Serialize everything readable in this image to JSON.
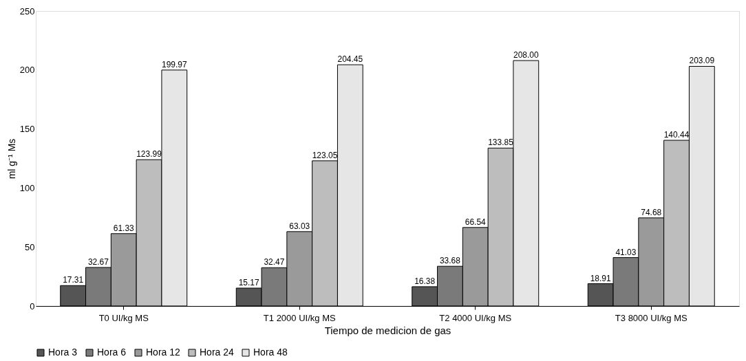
{
  "chart_data": {
    "type": "bar",
    "xlabel": "Tiempo  de medicion de gas",
    "ylabel": "ml g⁻¹ Ms",
    "categories": [
      "T0  UI/kg MS",
      "T1 2000 UI/kg MS",
      "T2 4000 UI/kg MS",
      "T3 8000 UI/kg MS"
    ],
    "series": [
      {
        "name": "Hora 3",
        "color": "#555555",
        "values": [
          17.31,
          15.17,
          16.38,
          18.91
        ],
        "value_labels": [
          "17.31",
          "15.17",
          "16.38",
          "18.91"
        ]
      },
      {
        "name": "Hora 6",
        "color": "#7a7a7a",
        "values": [
          32.67,
          32.47,
          33.68,
          41.03
        ],
        "value_labels": [
          "32.67",
          "32.47",
          "33.68",
          "41.03"
        ]
      },
      {
        "name": "Hora 12",
        "color": "#9a9a9a",
        "values": [
          61.33,
          63.03,
          66.54,
          74.68
        ],
        "value_labels": [
          "61.33",
          "63.03",
          "66.54",
          "74.68"
        ]
      },
      {
        "name": "Hora 24",
        "color": "#bdbdbd",
        "values": [
          123.99,
          123.05,
          133.85,
          140.44
        ],
        "value_labels": [
          "123.99",
          "123.05",
          "133.85",
          "140.44"
        ]
      },
      {
        "name": "Hora 48",
        "color": "#e6e6e6",
        "values": [
          199.97,
          204.45,
          208.0,
          203.09
        ],
        "value_labels": [
          "199.97",
          "204.45",
          "208.00",
          "203.09"
        ]
      }
    ],
    "ylim": [
      0,
      250
    ],
    "yticks": [
      0,
      50,
      100,
      150,
      200,
      250
    ],
    "grid": false,
    "legend": "bottom"
  }
}
